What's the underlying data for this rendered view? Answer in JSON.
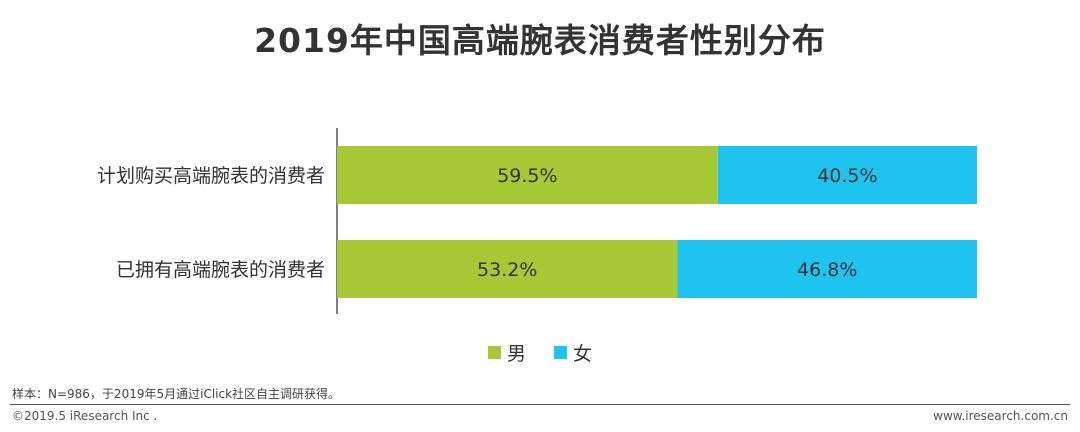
{
  "title": "2019年中国高端腕表消费者性别分布",
  "chart_data": {
    "type": "bar",
    "orientation": "horizontal",
    "stacked": true,
    "percent": true,
    "categories": [
      "计划购买高端腕表的消费者",
      "已拥有高端腕表的消费者"
    ],
    "series": [
      {
        "name": "男",
        "color": "#a7c936",
        "values": [
          59.5,
          53.2
        ]
      },
      {
        "name": "女",
        "color": "#1fc3ef",
        "values": [
          40.5,
          46.8
        ]
      }
    ],
    "data_labels": [
      [
        "59.5%",
        "53.2%"
      ],
      [
        "40.5%",
        "46.8%"
      ]
    ],
    "xlim": [
      0,
      100
    ],
    "grid": false,
    "legend_position": "bottom"
  },
  "footnote": "样本：N=986，于2019年5月通过iClick社区自主调研获得。",
  "copyright": "©2019.5 iResearch Inc .",
  "website": "www.iresearch.com.cn"
}
